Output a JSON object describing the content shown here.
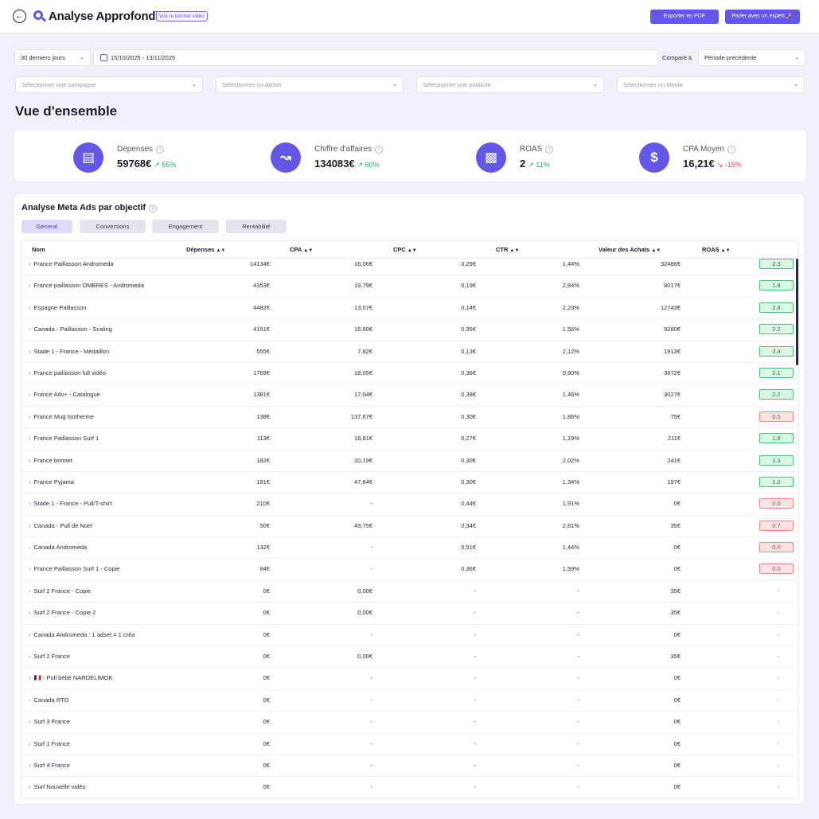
{
  "header": {
    "title": "Analyse Approfondie",
    "tutorial_label": "Voir le tutoriel vidéo",
    "export_pdf_label": "Exporter en PDF",
    "expert_label": "Parler avec un expert 🚀"
  },
  "filters": {
    "period": "30 derniers jours",
    "date_range": "15/10/2025 - 13/11/2025",
    "compare_label": "Comparé à",
    "compare_value": "Période précédente",
    "campaign_placeholder": "Sélectionner une campagne",
    "adset_placeholder": "Sélectionner un AdSet",
    "ad_placeholder": "Sélectionner une publicité",
    "media_placeholder": "Sélectionner un Media"
  },
  "overview": {
    "title": "Vue d'ensemble",
    "kpis": [
      {
        "label": "Dépenses",
        "value": "59768€",
        "delta": "↗ 55%",
        "trend": "up",
        "icon": "wallet-icon"
      },
      {
        "label": "Chiffre d'affaires",
        "value": "134083€",
        "delta": "↗ 60%",
        "trend": "up",
        "icon": "trend-icon"
      },
      {
        "label": "ROAS",
        "value": "2",
        "delta": "↗ 11%",
        "trend": "up",
        "icon": "bar-chart-icon"
      },
      {
        "label": "CPA Moyen",
        "value": "16,21€",
        "delta": "↘ -15%",
        "trend": "down",
        "icon": "dollar-icon"
      }
    ]
  },
  "analysis": {
    "title": "Analyse Meta Ads par objectif",
    "tabs": [
      "General",
      "Conversions",
      "Engagement",
      "Rentabilité"
    ],
    "columns": [
      "Nom",
      "Dépenses",
      "CPA",
      "CPC",
      "CTR",
      "Valeur des Achats",
      "ROAS"
    ],
    "rows": [
      {
        "name": "France Paillasson Andromeda",
        "dep": "14134€",
        "cpa": "16,06€",
        "cpc": "0,29€",
        "ctr": "1,44%",
        "val": "32486€",
        "roas": "2.3",
        "status": "good"
      },
      {
        "name": "France paillasson OMBRES - Andromeda",
        "dep": "4353€",
        "cpa": "19,79€",
        "cpc": "0,19€",
        "ctr": "2,84%",
        "val": "8017€",
        "roas": "1.8",
        "status": "good"
      },
      {
        "name": "Espagne Paillasson",
        "dep": "4482€",
        "cpa": "13,07€",
        "cpc": "0,14€",
        "ctr": "2,23%",
        "val": "12743€",
        "roas": "2.8",
        "status": "good"
      },
      {
        "name": "Canada - Paillasson - Scaling",
        "dep": "4151€",
        "cpa": "16,60€",
        "cpc": "0,35€",
        "ctr": "1,56%",
        "val": "9280€",
        "roas": "2.2",
        "status": "good"
      },
      {
        "name": "Stade 1 - France - Médaillon",
        "dep": "555€",
        "cpa": "7,82€",
        "cpc": "0,13€",
        "ctr": "2,12%",
        "val": "1913€",
        "roas": "3.4",
        "status": "good"
      },
      {
        "name": "France paillasson full vidéo",
        "dep": "1769€",
        "cpa": "18,05€",
        "cpc": "0,36€",
        "ctr": "0,90%",
        "val": "3672€",
        "roas": "2.1",
        "status": "good"
      },
      {
        "name": "France Adv+ - Catalogue",
        "dep": "1381€",
        "cpa": "17,04€",
        "cpc": "0,38€",
        "ctr": "1,46%",
        "val": "3027€",
        "roas": "2.2",
        "status": "good"
      },
      {
        "name": "France Mug Isotherme",
        "dep": "138€",
        "cpa": "137,67€",
        "cpc": "0,30€",
        "ctr": "1,86%",
        "val": "75€",
        "roas": "0.5",
        "status": "bad"
      },
      {
        "name": "France Paillasson Surf 1",
        "dep": "113€",
        "cpa": "18,81€",
        "cpc": "0,27€",
        "ctr": "1,19%",
        "val": "211€",
        "roas": "1.9",
        "status": "good"
      },
      {
        "name": "France bonnet",
        "dep": "182€",
        "cpa": "20,19€",
        "cpc": "0,30€",
        "ctr": "2,02%",
        "val": "241€",
        "roas": "1.3",
        "status": "good"
      },
      {
        "name": "France Pyjama",
        "dep": "191€",
        "cpa": "47,64€",
        "cpc": "0,30€",
        "ctr": "1,34%",
        "val": "197€",
        "roas": "1.0",
        "status": "good"
      },
      {
        "name": "Stade 1 - France - Pull/T-shirt",
        "dep": "210€",
        "cpa": "-",
        "cpc": "0,44€",
        "ctr": "1,91%",
        "val": "0€",
        "roas": "0.0",
        "status": "bad"
      },
      {
        "name": "Canada - Pull de Noel",
        "dep": "50€",
        "cpa": "49,75€",
        "cpc": "0,34€",
        "ctr": "2,81%",
        "val": "35€",
        "roas": "0.7",
        "status": "bad"
      },
      {
        "name": "Canada Andromeda",
        "dep": "132€",
        "cpa": "-",
        "cpc": "0,51€",
        "ctr": "1,44%",
        "val": "0€",
        "roas": "0.0",
        "status": "bad"
      },
      {
        "name": "France Paillasson Surf 1 - Copie",
        "dep": "84€",
        "cpa": "-",
        "cpc": "0,36€",
        "ctr": "1,59%",
        "val": "0€",
        "roas": "0.0",
        "status": "bad"
      },
      {
        "name": "Surf 2 France - Copie",
        "dep": "0€",
        "cpa": "0,00€",
        "cpc": "-",
        "ctr": "-",
        "val": "35€",
        "roas": "-",
        "status": "none"
      },
      {
        "name": "Surf 2 France - Copie 2",
        "dep": "0€",
        "cpa": "0,00€",
        "cpc": "-",
        "ctr": "-",
        "val": "35€",
        "roas": "-",
        "status": "none"
      },
      {
        "name": "Canada Andromeda : 1 adset = 1 créa",
        "dep": "0€",
        "cpa": "-",
        "cpc": "-",
        "ctr": "-",
        "val": "0€",
        "roas": "-",
        "status": "none"
      },
      {
        "name": "Surf 2 France",
        "dep": "0€",
        "cpa": "0,00€",
        "cpc": "-",
        "ctr": "-",
        "val": "35€",
        "roas": "-",
        "status": "none"
      },
      {
        "name": "🇫🇷 - Pull bébé NARDELIMOK",
        "dep": "0€",
        "cpa": "-",
        "cpc": "-",
        "ctr": "-",
        "val": "0€",
        "roas": "-",
        "status": "none"
      },
      {
        "name": "Canada RTG",
        "dep": "0€",
        "cpa": "-",
        "cpc": "-",
        "ctr": "-",
        "val": "0€",
        "roas": "-",
        "status": "none"
      },
      {
        "name": "Surf 3 France",
        "dep": "0€",
        "cpa": "-",
        "cpc": "-",
        "ctr": "-",
        "val": "0€",
        "roas": "-",
        "status": "none"
      },
      {
        "name": "Surf 1 France",
        "dep": "0€",
        "cpa": "-",
        "cpc": "-",
        "ctr": "-",
        "val": "0€",
        "roas": "-",
        "status": "none"
      },
      {
        "name": "Surf 4 France",
        "dep": "0€",
        "cpa": "-",
        "cpc": "-",
        "ctr": "-",
        "val": "0€",
        "roas": "-",
        "status": "none"
      },
      {
        "name": "Surf Nouvelle vidéo",
        "dep": "0€",
        "cpa": "-",
        "cpc": "-",
        "ctr": "-",
        "val": "0€",
        "roas": "-",
        "status": "none"
      }
    ]
  }
}
